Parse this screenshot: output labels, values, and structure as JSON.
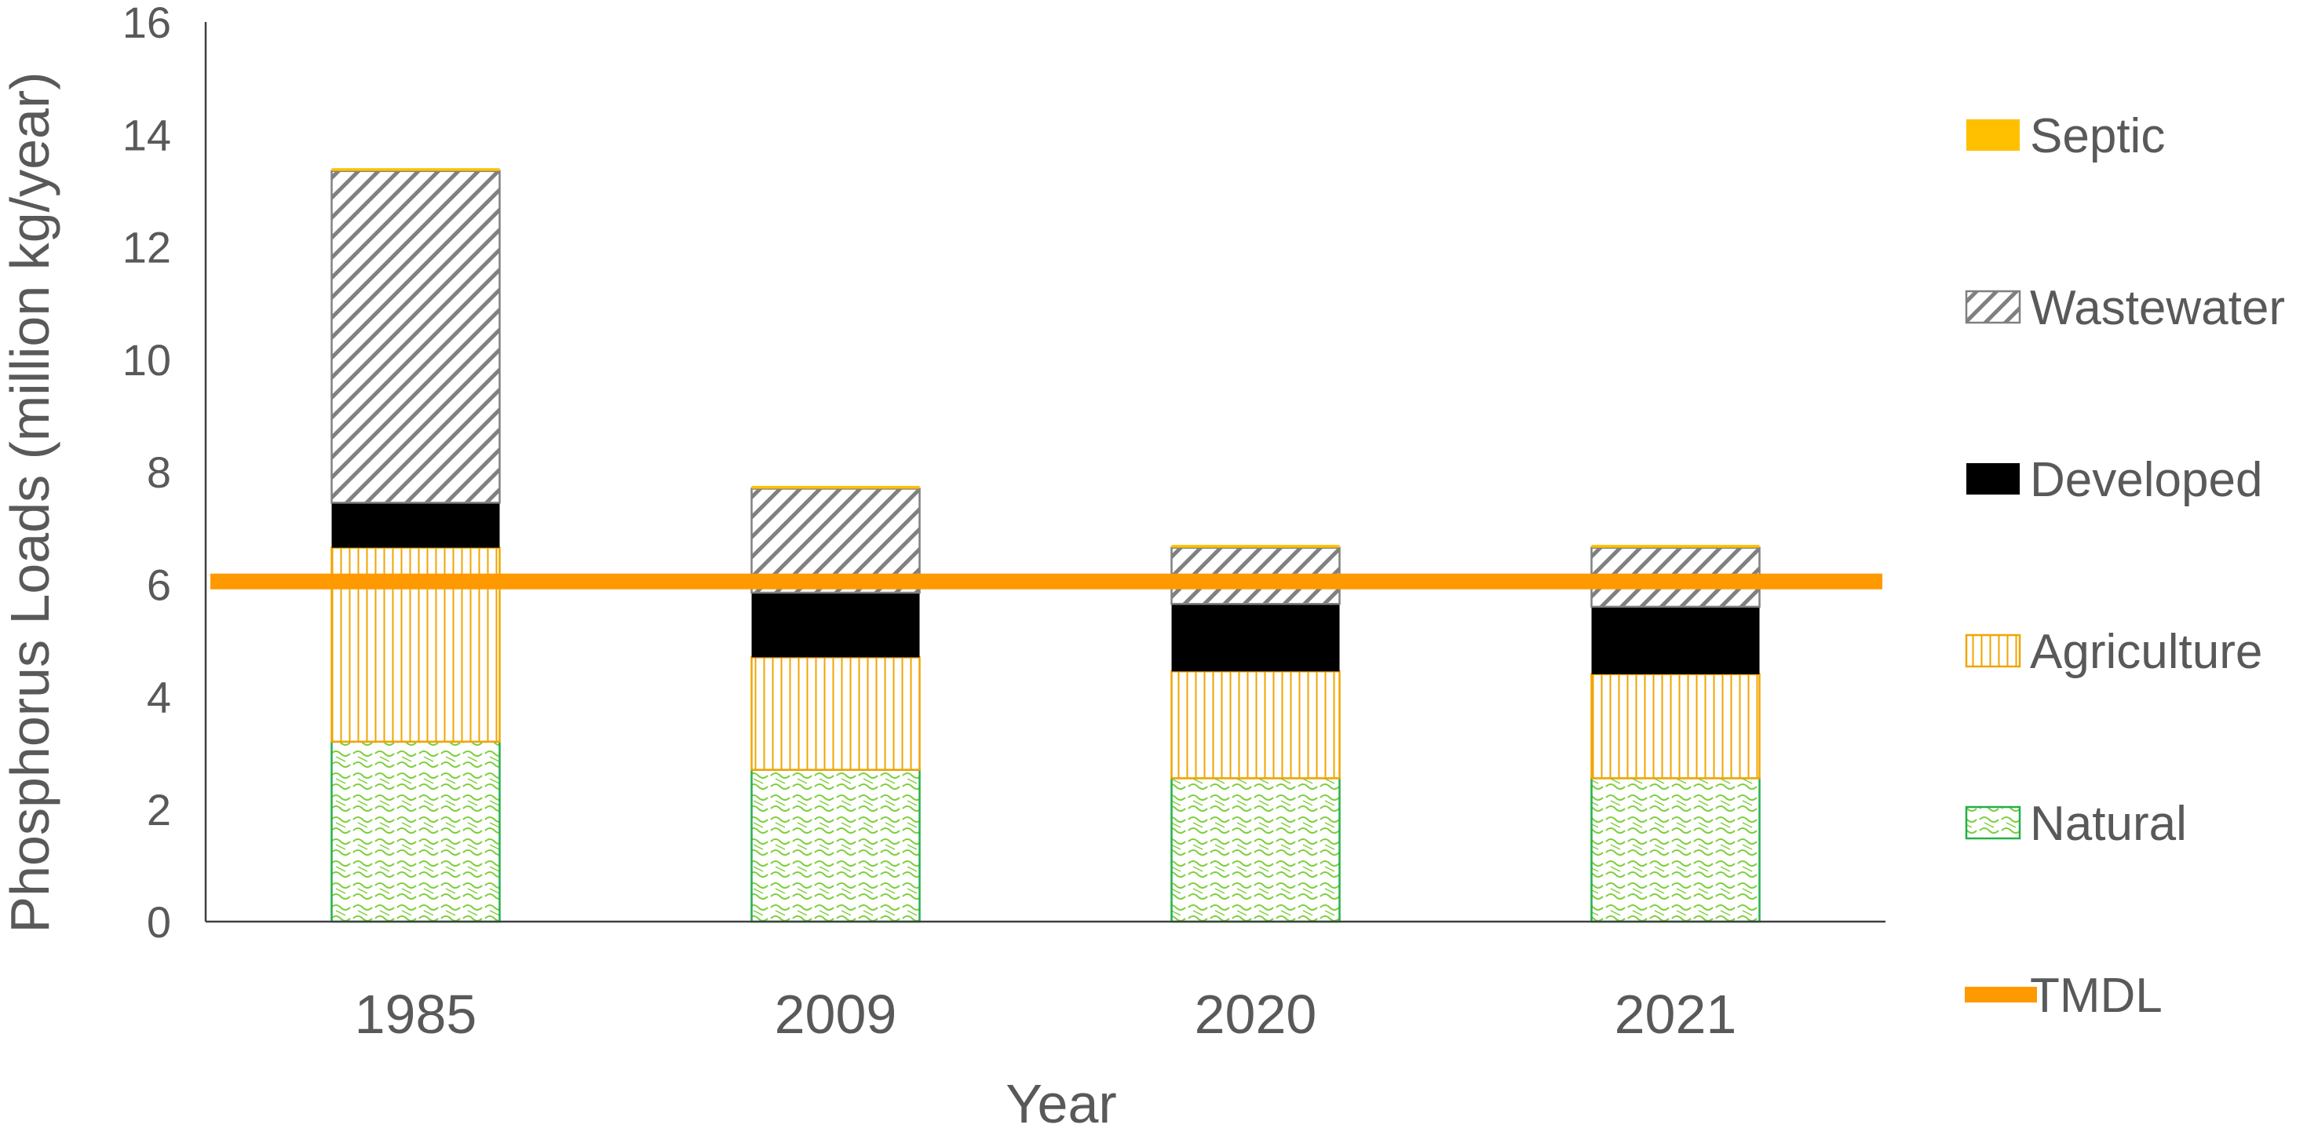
{
  "chart_data": {
    "type": "bar",
    "stacked": true,
    "categories": [
      "1985",
      "2009",
      "2020",
      "2021"
    ],
    "series": [
      {
        "name": "Natural",
        "values": [
          3.2,
          2.7,
          2.55,
          2.55
        ],
        "color": "#22b04a",
        "pattern": "natural-hatch"
      },
      {
        "name": "Agriculture",
        "values": [
          3.45,
          2.0,
          1.9,
          1.85
        ],
        "color": "#f0a500",
        "pattern": "vertical-lines"
      },
      {
        "name": "Developed",
        "values": [
          0.8,
          1.15,
          1.2,
          1.2
        ],
        "color": "#000000",
        "pattern": "solid"
      },
      {
        "name": "Wastewater",
        "values": [
          5.9,
          1.85,
          1.0,
          1.05
        ],
        "color": "#808080",
        "pattern": "diagonal-lines"
      },
      {
        "name": "Septic",
        "values": [
          0.05,
          0.05,
          0.05,
          0.05
        ],
        "color": "#ffc000",
        "pattern": "solid"
      }
    ],
    "reference_line": {
      "name": "TMDL",
      "value": 6.05,
      "color": "#ff9900"
    },
    "xlabel": "Year",
    "ylabel": "Phosphorus Loads (million kg/year)",
    "ylim": [
      0,
      16
    ],
    "yticks": [
      0,
      2,
      4,
      6,
      8,
      10,
      12,
      14,
      16
    ],
    "grid": false,
    "legend_position": "right"
  }
}
